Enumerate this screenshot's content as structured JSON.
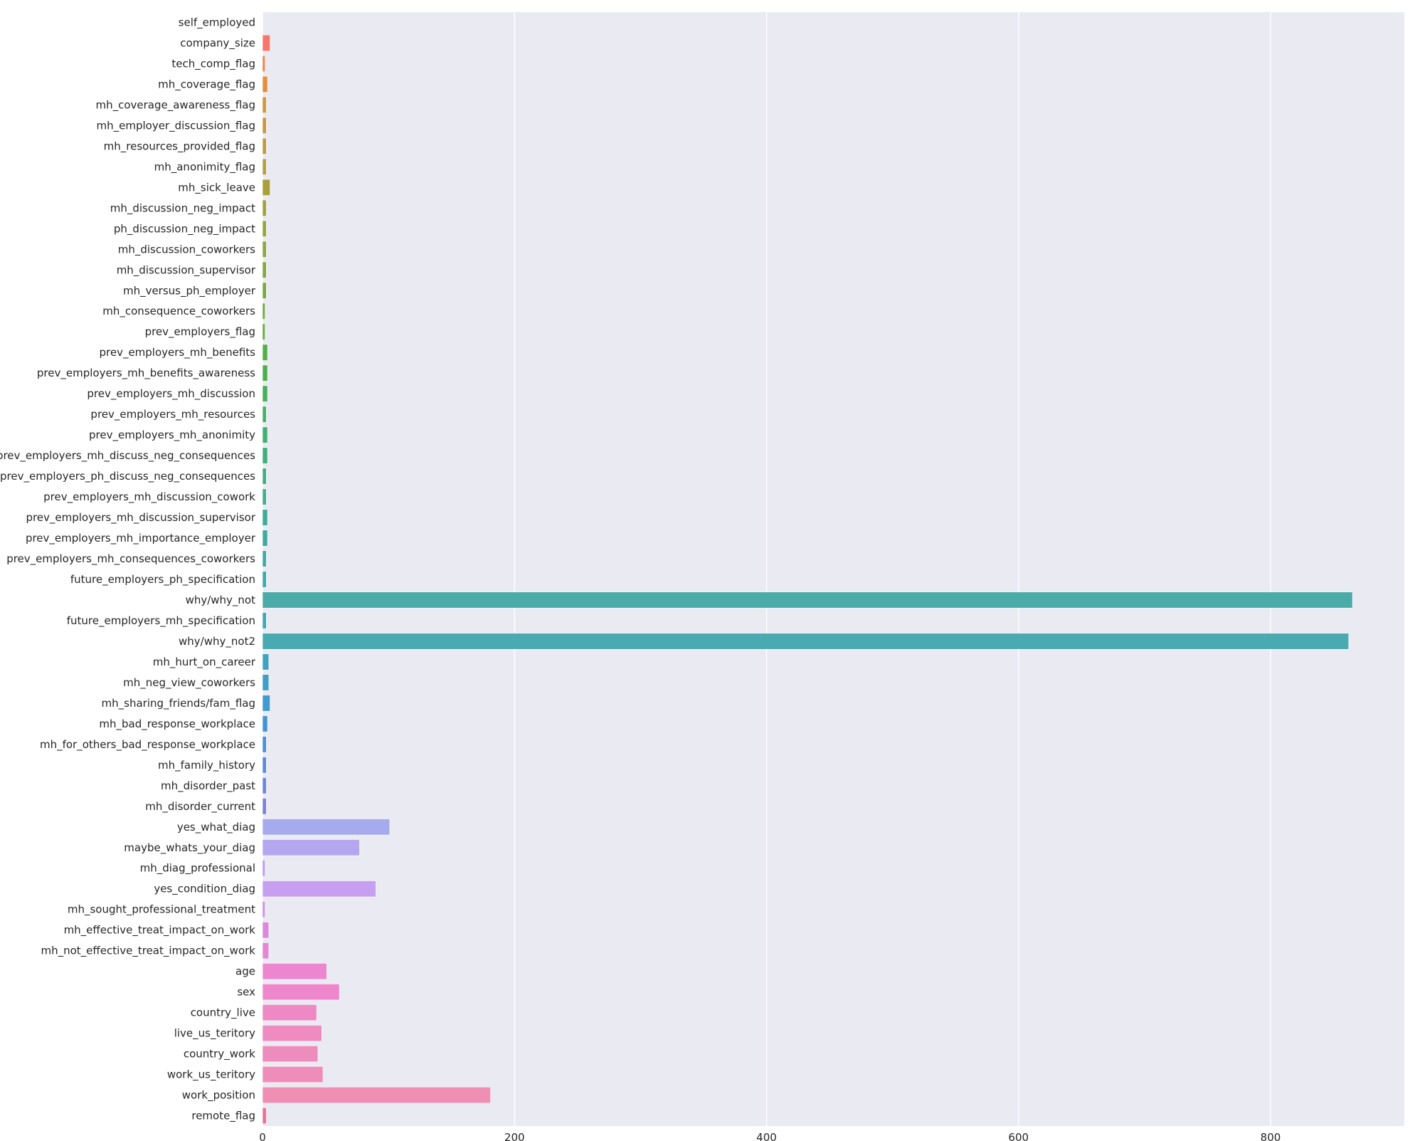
{
  "chart_data": {
    "type": "bar",
    "orientation": "horizontal",
    "title": "",
    "xlabel": "",
    "ylabel": "",
    "xlim": [
      0,
      910
    ],
    "xticks": [
      "0",
      "200",
      "400",
      "600",
      "800"
    ],
    "grid": true,
    "legend": "none",
    "background": "#eaeaf2",
    "categories": [
      "self_employed",
      "company_size",
      "tech_comp_flag",
      "mh_coverage_flag",
      "mh_coverage_awareness_flag",
      "mh_employer_discussion_flag",
      "mh_resources_provided_flag",
      "mh_anonimity_flag",
      "mh_sick_leave",
      "mh_discussion_neg_impact",
      "ph_discussion_neg_impact",
      "mh_discussion_coworkers",
      "mh_discussion_supervisor",
      "mh_versus_ph_employer",
      "mh_consequence_coworkers",
      "prev_employers_flag",
      "prev_employers_mh_benefits",
      "prev_employers_mh_benefits_awareness",
      "prev_employers_mh_discussion",
      "prev_employers_mh_resources",
      "prev_employers_mh_anonimity",
      "prev_employers_mh_discuss_neg_consequences",
      "prev_employers_ph_discuss_neg_consequences",
      "prev_employers_mh_discussion_cowork",
      "prev_employers_mh_discussion_supervisor",
      "prev_employers_mh_importance_employer",
      "prev_employers_mh_consequences_coworkers",
      "future_employers_ph_specification",
      "why/why_not",
      "future_employers_mh_specification",
      "why/why_not2",
      "mh_hurt_on_career",
      "mh_neg_view_coworkers",
      "mh_sharing_friends/fam_flag",
      "mh_bad_response_workplace",
      "mh_for_others_bad_response_workplace",
      "mh_family_history",
      "mh_disorder_past",
      "mh_disorder_current",
      "yes_what_diag",
      "maybe_whats_your_diag",
      "mh_diag_professional",
      "yes_condition_diag",
      "mh_sought_professional_treatment",
      "mh_effective_treat_impact_on_work",
      "mh_not_effective_treat_impact_on_work",
      "age",
      "sex",
      "country_live",
      "live_us_teritory",
      "country_work",
      "work_us_teritory",
      "work_position",
      "remote_flag"
    ],
    "values": [
      0,
      6,
      2,
      4,
      3,
      3,
      3,
      3,
      6,
      3,
      3,
      3,
      3,
      3,
      2,
      2,
      4,
      4,
      4,
      3,
      4,
      4,
      3,
      3,
      4,
      4,
      3,
      3,
      865,
      3,
      862,
      5,
      5,
      6,
      4,
      3,
      3,
      3,
      3,
      101,
      77,
      2,
      90,
      2,
      5,
      5,
      51,
      61,
      43,
      47,
      44,
      48,
      181,
      3
    ],
    "colors": [
      "#f77189",
      "#f6766b",
      "#ee8543",
      "#e48f3b",
      "#d7953a",
      "#cc993a",
      "#c29c3b",
      "#b7a03b",
      "#ab9f3a",
      "#a1a23a",
      "#97a63b",
      "#8da83b",
      "#83a93b",
      "#7aab3b",
      "#6eac3d",
      "#60ae3f",
      "#54b044",
      "#4bb14f",
      "#47b15b",
      "#44b267",
      "#43b172",
      "#42b07c",
      "#41af86",
      "#40ae8f",
      "#3fad98",
      "#3eaca0",
      "#3dabaa",
      "#3caab2",
      "#4aaba9",
      "#3ca7b9",
      "#4aaab1",
      "#3ea3bf",
      "#3f9fc6",
      "#419bce",
      "#4396d6",
      "#4a91de",
      "#5b8be1",
      "#6d86e3",
      "#7d80e5",
      "#a6abee",
      "#b4a7ef",
      "#b99aee",
      "#c79ff0",
      "#d08fe8",
      "#dc88dc",
      "#e586d6",
      "#ec86cf",
      "#ee87cb",
      "#ee89c6",
      "#ee8bc1",
      "#ee8cbd",
      "#ee8dba",
      "#ee8fb3",
      "#f07196"
    ]
  }
}
